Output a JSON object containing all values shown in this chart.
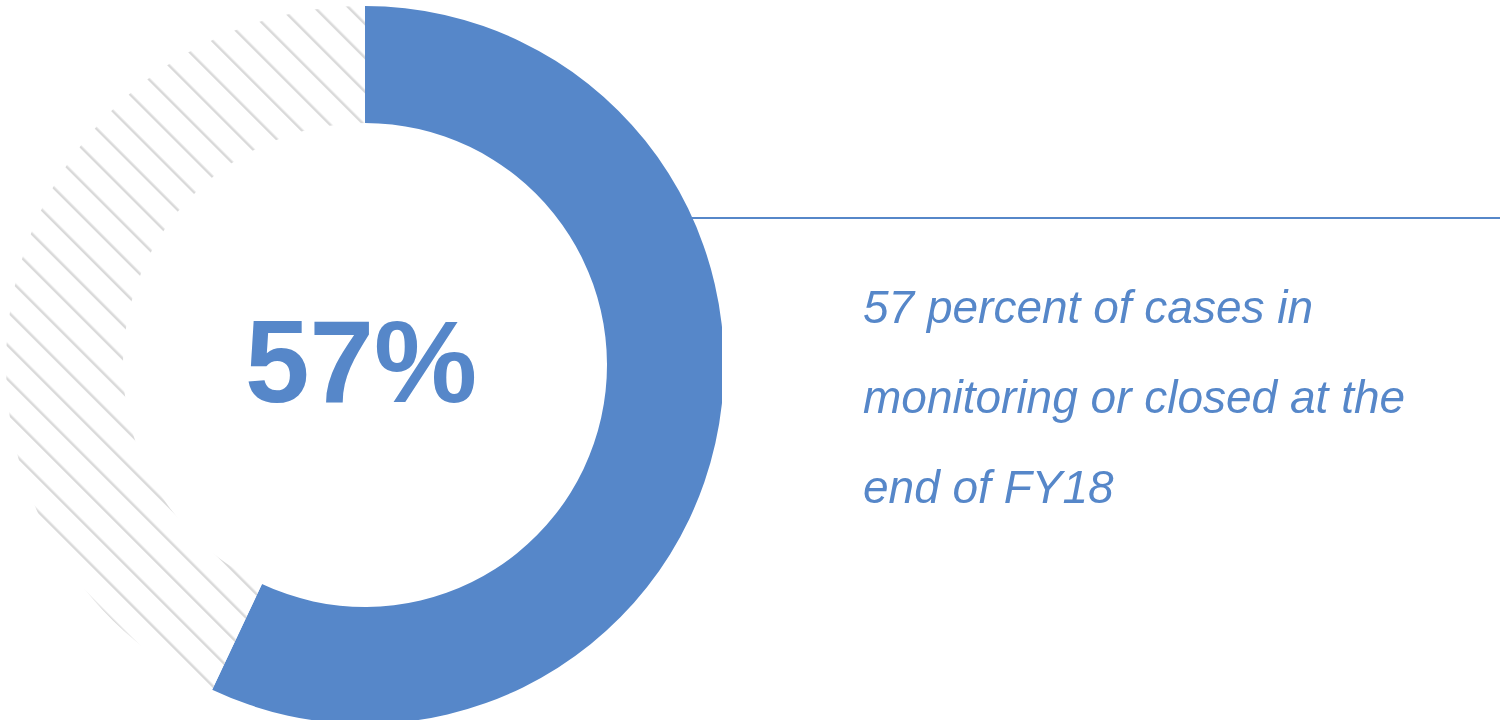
{
  "chart_data": {
    "type": "donut",
    "categories": [
      null,
      null
    ],
    "values": [
      57,
      43
    ],
    "colors": [
      "#5687c9",
      "#d9d9d9"
    ],
    "annotations": [
      "57%",
      "57 percent of cases in monitoring or closed at the end of FY18"
    ]
  }
}
